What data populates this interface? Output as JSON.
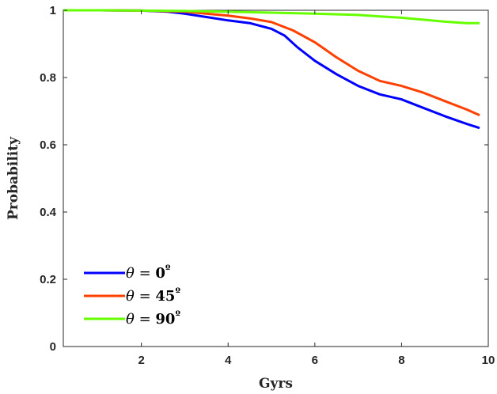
{
  "chart_data": {
    "type": "line",
    "xlabel": "Gyrs",
    "ylabel": "Probability",
    "xlim": [
      0.2,
      10
    ],
    "ylim": [
      0,
      1
    ],
    "xticks": [
      2,
      4,
      6,
      8,
      10
    ],
    "yticks": [
      0,
      0.2,
      0.4,
      0.6,
      0.8,
      1
    ],
    "xtick_labels": [
      "2",
      "4",
      "6",
      "8",
      "10"
    ],
    "ytick_labels": [
      "0",
      "0.2",
      "0.4",
      "0.6",
      "0.8",
      "1"
    ],
    "grid": false,
    "box": true,
    "legend_position": "bottom-left",
    "series": [
      {
        "name": "θ = 0º",
        "legend_parts": [
          "θ",
          " = ",
          "0",
          "º"
        ],
        "color": "#0000ff",
        "x": [
          0.2,
          1.0,
          2.0,
          2.6,
          3.0,
          3.5,
          4.0,
          4.5,
          5.0,
          5.3,
          5.6,
          6.0,
          6.5,
          7.0,
          7.5,
          8.0,
          8.5,
          9.0,
          9.5,
          9.8
        ],
        "y": [
          1.0,
          1.0,
          0.999,
          0.996,
          0.99,
          0.98,
          0.97,
          0.962,
          0.945,
          0.925,
          0.89,
          0.85,
          0.81,
          0.775,
          0.75,
          0.735,
          0.71,
          0.685,
          0.662,
          0.65
        ]
      },
      {
        "name": "θ = 45º",
        "legend_parts": [
          "θ",
          " = ",
          "45",
          "º"
        ],
        "color": "#ff4000",
        "x": [
          0.2,
          1.0,
          2.0,
          3.0,
          3.5,
          4.0,
          4.5,
          5.0,
          5.5,
          6.0,
          6.5,
          7.0,
          7.5,
          8.0,
          8.5,
          9.0,
          9.5,
          9.8
        ],
        "y": [
          1.0,
          1.0,
          0.999,
          0.996,
          0.99,
          0.984,
          0.976,
          0.965,
          0.94,
          0.905,
          0.86,
          0.82,
          0.79,
          0.775,
          0.755,
          0.73,
          0.705,
          0.688
        ]
      },
      {
        "name": "θ = 90º",
        "legend_parts": [
          "θ",
          " = ",
          "90",
          "º"
        ],
        "color": "#66ff00",
        "x": [
          0.2,
          1.0,
          2.0,
          3.0,
          4.0,
          5.0,
          6.0,
          7.0,
          7.5,
          8.0,
          8.5,
          9.0,
          9.5,
          9.8
        ],
        "y": [
          1.0,
          1.0,
          0.999,
          0.998,
          0.996,
          0.993,
          0.99,
          0.986,
          0.982,
          0.978,
          0.972,
          0.966,
          0.962,
          0.962
        ]
      }
    ]
  }
}
